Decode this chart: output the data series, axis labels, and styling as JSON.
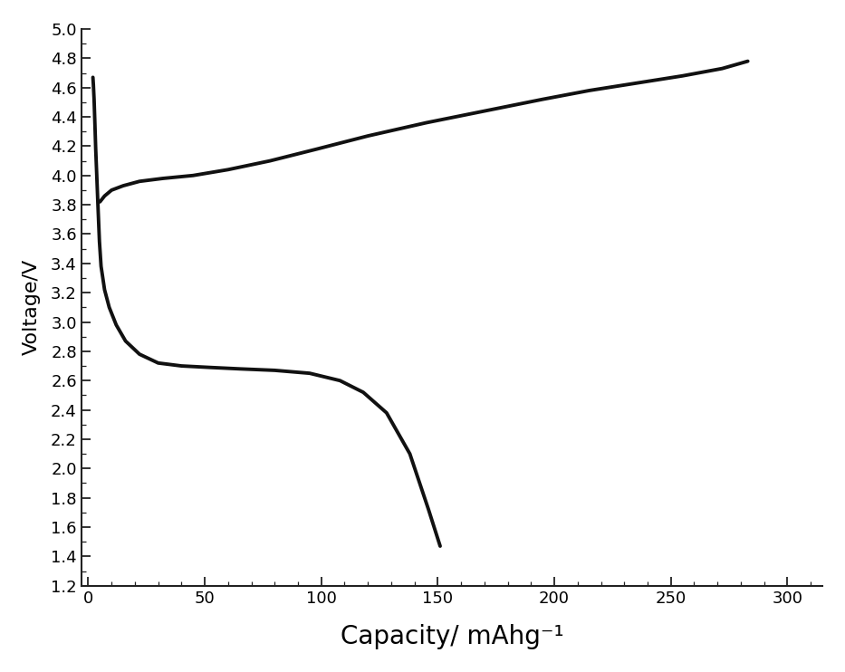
{
  "title": "",
  "xlabel": "Capacity/ mAhg⁻¹",
  "ylabel": "Voltage/V",
  "xlim": [
    -3,
    315
  ],
  "ylim": [
    1.2,
    5.0
  ],
  "xticks": [
    0,
    50,
    100,
    150,
    200,
    250,
    300
  ],
  "yticks": [
    1.2,
    1.4,
    1.6,
    1.8,
    2.0,
    2.2,
    2.4,
    2.6,
    2.8,
    3.0,
    3.2,
    3.4,
    3.6,
    3.8,
    4.0,
    4.2,
    4.4,
    4.6,
    4.8,
    5.0
  ],
  "line_color": "#111111",
  "line_width": 2.8,
  "background_color": "#ffffff",
  "discharge_x": [
    2.0,
    2.2,
    2.5,
    2.8,
    3.2,
    3.7,
    4.2,
    4.8,
    5.5,
    7.0,
    9.0,
    12.0,
    16.0,
    22.0,
    30.0,
    40.0,
    52.0,
    65.0,
    80.0,
    95.0,
    108.0,
    118.0,
    128.0,
    138.0,
    146.0,
    151.0
  ],
  "discharge_y": [
    4.67,
    4.62,
    4.52,
    4.38,
    4.18,
    3.98,
    3.78,
    3.55,
    3.38,
    3.22,
    3.1,
    2.98,
    2.87,
    2.78,
    2.72,
    2.7,
    2.69,
    2.68,
    2.67,
    2.65,
    2.6,
    2.52,
    2.38,
    2.1,
    1.72,
    1.47
  ],
  "charge_x": [
    5.0,
    7.0,
    10.0,
    15.0,
    22.0,
    32.0,
    45.0,
    60.0,
    78.0,
    98.0,
    120.0,
    145.0,
    170.0,
    195.0,
    215.0,
    235.0,
    255.0,
    272.0,
    283.0
  ],
  "charge_y": [
    3.82,
    3.86,
    3.9,
    3.93,
    3.96,
    3.98,
    4.0,
    4.04,
    4.1,
    4.18,
    4.27,
    4.36,
    4.44,
    4.52,
    4.58,
    4.63,
    4.68,
    4.73,
    4.78
  ],
  "xlabel_fontsize": 20,
  "ylabel_fontsize": 16,
  "tick_label_size": 13,
  "figsize": [
    9.33,
    7.42
  ],
  "dpi": 100
}
